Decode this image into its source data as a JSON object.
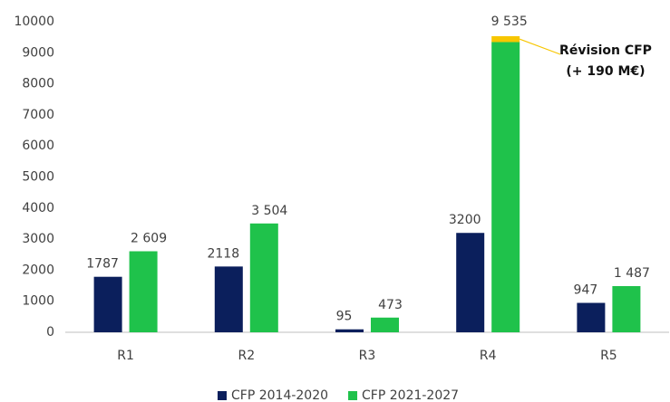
{
  "chart_data": {
    "type": "bar",
    "categories": [
      "R1",
      "R2",
      "R3",
      "R4",
      "R5"
    ],
    "series": [
      {
        "name": "CFP 2014-2020",
        "color": "#0b1f5c",
        "values": [
          1787,
          2118,
          95,
          3200,
          947
        ]
      },
      {
        "name": "CFP 2021-2027",
        "color": "#1fc24b",
        "values": [
          2609,
          3504,
          473,
          9345,
          1487
        ],
        "value_labels": [
          "2 609",
          "3 504",
          "473",
          null,
          "1 487"
        ]
      }
    ],
    "revision": {
      "category_index": 3,
      "series_index": 1,
      "value": 190,
      "color": "#f7c600",
      "label_lines": [
        "Révision CFP",
        "(+ 190 M€)"
      ],
      "total_label": {
        "value": 9535,
        "label": "9 535"
      }
    },
    "ylim": [
      0,
      10000
    ],
    "yticks": [
      0,
      1000,
      2000,
      3000,
      4000,
      5000,
      6000,
      7000,
      8000,
      9000,
      10000
    ],
    "grid": false,
    "legend": "bottom"
  }
}
